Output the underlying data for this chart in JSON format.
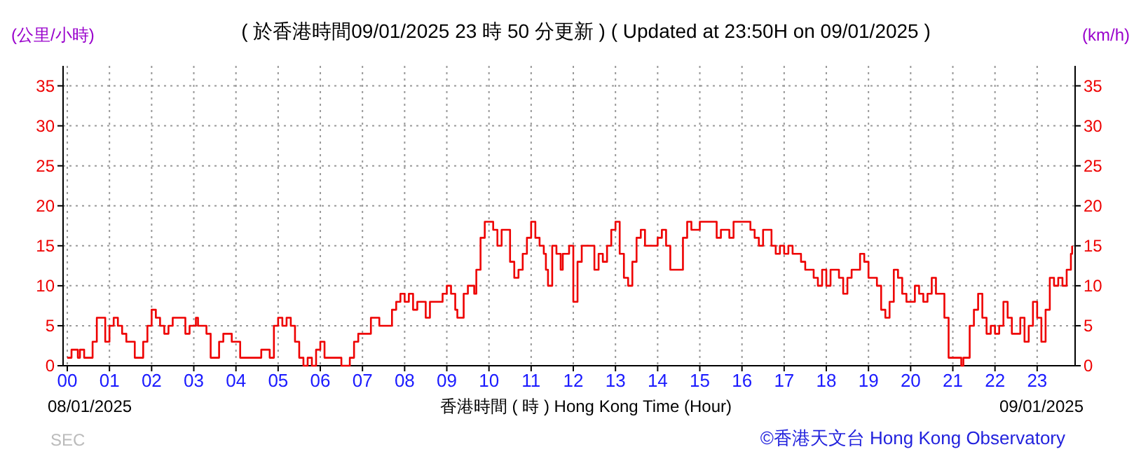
{
  "chart_data": {
    "type": "step",
    "title": "( 於香港時間09/01/2025 23 時 50 分更新 ) ( Updated at 23:50H on 09/01/2025 )",
    "ylabel": "(公里/小時)",
    "y2label": "(km/h)",
    "xlabel": "香港時間 ( 時 )  Hong Kong Time (Hour)",
    "annotations": [
      "08/01/2025",
      "09/01/2025",
      "SEC",
      "©香港天文台 Hong Kong Observatory"
    ],
    "xlim": [
      -0.1,
      23.9
    ],
    "ylim": [
      0,
      37.5
    ],
    "y2lim": [
      0,
      37.5
    ],
    "xticks": [
      {
        "value": 0,
        "label": "00"
      },
      {
        "value": 1,
        "label": "01"
      },
      {
        "value": 2,
        "label": "02"
      },
      {
        "value": 3,
        "label": "03"
      },
      {
        "value": 4,
        "label": "04"
      },
      {
        "value": 5,
        "label": "05"
      },
      {
        "value": 6,
        "label": "06"
      },
      {
        "value": 7,
        "label": "07"
      },
      {
        "value": 8,
        "label": "08"
      },
      {
        "value": 9,
        "label": "09"
      },
      10,
      11,
      12,
      13,
      14,
      15,
      16,
      17,
      18,
      19,
      20,
      21,
      22,
      23
    ],
    "yticks": [
      0,
      5,
      10,
      15,
      20,
      25,
      30,
      35
    ],
    "y2ticks": [
      0,
      5,
      10,
      15,
      20,
      25,
      30,
      35
    ],
    "grid": true,
    "series": [
      {
        "color": "#ee0000",
        "x": [
          0,
          0.1,
          0.25,
          0.3,
          0.4,
          0.5,
          0.6,
          0.7,
          0.8,
          0.9,
          1.0,
          1.1,
          1.2,
          1.3,
          1.4,
          1.6,
          1.7,
          1.8,
          1.9,
          2.0,
          2.1,
          2.2,
          2.3,
          2.4,
          2.5,
          2.7,
          2.8,
          2.9,
          3.0,
          3.05,
          3.1,
          3.2,
          3.3,
          3.4,
          3.5,
          3.6,
          3.7,
          3.8,
          3.9,
          4.0,
          4.1,
          4.5,
          4.6,
          4.7,
          4.8,
          4.9,
          5.0,
          5.1,
          5.2,
          5.3,
          5.4,
          5.5,
          5.6,
          5.7,
          5.8,
          5.9,
          6.0,
          6.1,
          6.2,
          6.4,
          6.5,
          6.7,
          6.8,
          6.9,
          7.0,
          7.2,
          7.3,
          7.4,
          7.6,
          7.7,
          7.8,
          7.9,
          8.0,
          8.1,
          8.2,
          8.3,
          8.5,
          8.6,
          8.8,
          8.9,
          9.0,
          9.1,
          9.2,
          9.25,
          9.4,
          9.5,
          9.65,
          9.7,
          9.8,
          9.9,
          10.1,
          10.2,
          10.3,
          10.5,
          10.6,
          10.7,
          10.8,
          10.9,
          11.0,
          11.1,
          11.2,
          11.3,
          11.35,
          11.4,
          11.5,
          11.6,
          11.7,
          11.75,
          11.9,
          12.0,
          12.1,
          12.2,
          12.5,
          12.6,
          12.7,
          12.8,
          12.9,
          13.0,
          13.1,
          13.2,
          13.3,
          13.4,
          13.5,
          13.6,
          13.7,
          14.0,
          14.1,
          14.2,
          14.3,
          14.6,
          14.7,
          14.8,
          15.0,
          15.4,
          15.5,
          15.7,
          15.8,
          16.2,
          16.3,
          16.4,
          16.5,
          16.7,
          16.8,
          16.9,
          17.0,
          17.1,
          17.2,
          17.4,
          17.5,
          17.7,
          17.8,
          17.9,
          18.0,
          18.1,
          18.3,
          18.4,
          18.5,
          18.6,
          18.8,
          18.9,
          19.0,
          19.2,
          19.3,
          19.4,
          19.5,
          19.6,
          19.7,
          19.8,
          19.9,
          20.1,
          20.2,
          20.3,
          20.4,
          20.5,
          20.6,
          20.8,
          20.9,
          21.2,
          21.25,
          21.4,
          21.5,
          21.6,
          21.7,
          21.8,
          21.9,
          22.0,
          22.1,
          22.2,
          22.3,
          22.4,
          22.6,
          22.7,
          22.8,
          22.9,
          23.0,
          23.1,
          23.2,
          23.3,
          23.4,
          23.5,
          23.6,
          23.7,
          23.8,
          23.83
        ],
        "values": [
          1,
          2,
          1,
          2,
          1,
          1,
          3,
          6,
          6,
          3,
          5,
          6,
          5,
          4,
          3,
          1,
          1,
          3,
          5,
          7,
          6,
          5,
          4,
          5,
          6,
          6,
          4,
          5,
          5,
          6,
          5,
          5,
          4,
          1,
          1,
          3,
          4,
          4,
          3,
          3,
          1,
          1,
          2,
          2,
          1,
          5,
          6,
          5,
          6,
          5,
          3,
          1,
          0,
          1,
          0,
          2,
          3,
          1,
          1,
          1,
          0,
          1,
          3,
          4,
          4,
          6,
          6,
          5,
          5,
          7,
          8,
          9,
          8,
          9,
          7,
          8,
          6,
          8,
          8,
          9,
          10,
          9,
          7,
          6,
          9,
          10,
          9,
          12,
          16,
          18,
          17,
          15,
          17,
          13,
          11,
          12,
          14,
          16,
          18,
          16,
          15,
          14,
          12,
          10,
          15,
          14,
          12,
          14,
          15,
          8,
          13,
          15,
          12,
          14,
          13,
          15,
          17,
          18,
          14,
          11,
          10,
          13,
          16,
          17,
          15,
          16,
          17,
          15,
          12,
          16,
          18,
          17,
          18,
          16,
          17,
          16,
          18,
          17,
          16,
          15,
          17,
          15,
          14,
          15,
          14,
          15,
          14,
          13,
          12,
          11,
          10,
          12,
          10,
          12,
          11,
          9,
          11,
          12,
          14,
          13,
          11,
          10,
          7,
          6,
          8,
          12,
          11,
          9,
          8,
          10,
          9,
          8,
          9,
          11,
          9,
          6,
          1,
          0,
          1,
          5,
          7,
          9,
          6,
          4,
          5,
          4,
          5,
          8,
          6,
          4,
          6,
          3,
          5,
          8,
          6,
          3,
          7,
          11,
          10,
          11,
          10,
          12,
          14,
          15
        ]
      }
    ]
  }
}
